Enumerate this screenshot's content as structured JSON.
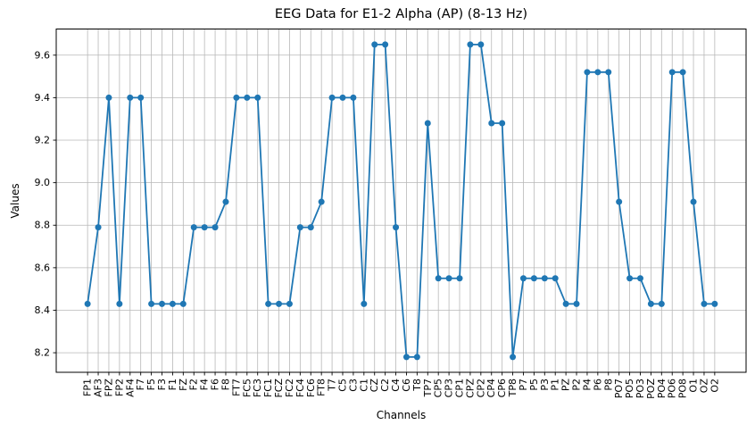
{
  "chart_data": {
    "type": "line",
    "title": "EEG Data for E1-2 Alpha (AP) (8-13 Hz)",
    "xlabel": "Channels",
    "ylabel": "Values",
    "categories": [
      "FP1",
      "AF3",
      "FPZ",
      "FP2",
      "AF4",
      "F7",
      "F5",
      "F3",
      "F1",
      "FZ",
      "F2",
      "F4",
      "F6",
      "F8",
      "FT7",
      "FC5",
      "FC3",
      "FC1",
      "FCZ",
      "FC2",
      "FC4",
      "FC6",
      "FT8",
      "T7",
      "C5",
      "C3",
      "C1",
      "CZ",
      "C2",
      "C4",
      "C6",
      "T8",
      "TP7",
      "CP5",
      "CP3",
      "CP1",
      "CPZ",
      "CP2",
      "CP4",
      "CP6",
      "TP8",
      "P7",
      "P5",
      "P3",
      "P1",
      "PZ",
      "P2",
      "P4",
      "P6",
      "P8",
      "PO7",
      "PO5",
      "PO3",
      "POZ",
      "PO4",
      "PO6",
      "PO8",
      "O1",
      "OZ",
      "O2"
    ],
    "values": [
      8.43,
      8.79,
      9.4,
      8.43,
      9.4,
      9.4,
      8.43,
      8.43,
      8.43,
      8.43,
      8.79,
      8.79,
      8.79,
      8.91,
      9.4,
      9.4,
      9.4,
      8.43,
      8.43,
      8.43,
      8.79,
      8.79,
      8.91,
      9.4,
      9.4,
      9.4,
      8.43,
      9.65,
      9.65,
      8.79,
      8.18,
      8.18,
      9.28,
      8.55,
      8.55,
      8.55,
      9.65,
      9.65,
      9.28,
      9.28,
      8.18,
      8.55,
      8.55,
      8.55,
      8.55,
      8.43,
      8.43,
      9.52,
      9.52,
      9.52,
      8.91,
      8.55,
      8.55,
      8.43,
      8.43,
      9.52,
      9.52,
      8.91,
      8.43,
      8.43
    ],
    "yticks": [
      8.2,
      8.4,
      8.6,
      8.8,
      9.0,
      9.2,
      9.4,
      9.6
    ],
    "ylim": [
      8.108,
      9.723
    ],
    "xlim": [
      -2.95,
      61.95
    ],
    "grid": true,
    "legend_position": "none",
    "line_color": "#1f77b4",
    "marker": "circle",
    "grid_color": "#b8b8b8",
    "spine_color": "#000000"
  }
}
